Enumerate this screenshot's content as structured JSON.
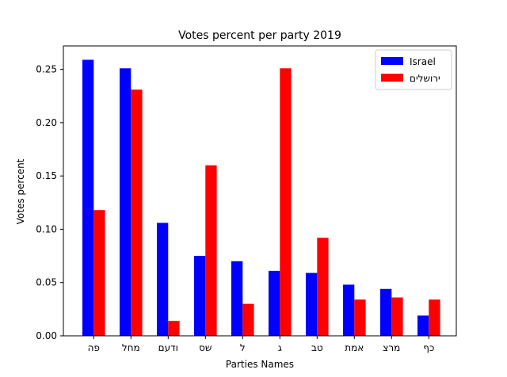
{
  "chart_data": {
    "type": "bar",
    "title": "Votes percent per party 2019",
    "xlabel": "Parties Names",
    "ylabel": "Votes percent",
    "ylim": [
      0,
      0.272
    ],
    "yticks": [
      "0.00",
      "0.05",
      "0.10",
      "0.15",
      "0.20",
      "0.25"
    ],
    "ytick_values": [
      0,
      0.05,
      0.1,
      0.15,
      0.2,
      0.25
    ],
    "categories": [
      "פה",
      "מחל",
      "ודעם",
      "שס",
      "ל",
      "ג",
      "טב",
      "אמת",
      "מרצ",
      "כף"
    ],
    "series": [
      {
        "name": "Israel",
        "color": "#0000ff",
        "values": [
          0.259,
          0.251,
          0.106,
          0.075,
          0.07,
          0.061,
          0.059,
          0.048,
          0.044,
          0.019
        ]
      },
      {
        "name": "ירושלים",
        "color": "#ff0000",
        "values": [
          0.118,
          0.231,
          0.014,
          0.16,
          0.03,
          0.251,
          0.092,
          0.034,
          0.036,
          0.034
        ]
      }
    ],
    "legend": "top-right",
    "grid": false
  }
}
